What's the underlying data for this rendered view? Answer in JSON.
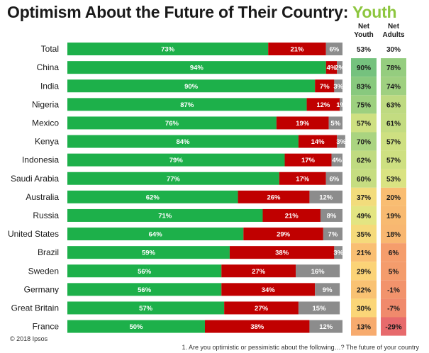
{
  "title": {
    "main": "Optimism About the Future of Their Country:",
    "accent": "Youth"
  },
  "headers": {
    "net_youth": [
      "Net",
      "Youth"
    ],
    "net_adults": [
      "Net",
      "Adults"
    ]
  },
  "copyright": "© 2018 Ipsos",
  "footnote": "1. Are you optimistic or pessimistic about the following…? The future of your country",
  "colors": {
    "optimistic": "#1db04a",
    "pessimistic": "#c00000",
    "neutral": "#8c8c8c",
    "accent": "#8dc63f"
  },
  "chart_data": {
    "type": "bar",
    "orientation": "horizontal",
    "stacked": true,
    "categories": [
      "Total",
      "China",
      "India",
      "Nigeria",
      "Mexico",
      "Kenya",
      "Indonesia",
      "Saudi Arabia",
      "Australia",
      "Russia",
      "United States",
      "Brazil",
      "Sweden",
      "Germany",
      "Great Britain",
      "France"
    ],
    "series": [
      {
        "values": [
          73,
          94,
          90,
          87,
          76,
          84,
          79,
          77,
          62,
          71,
          64,
          59,
          56,
          56,
          57,
          50
        ],
        "color": "#1db04a"
      },
      {
        "values": [
          21,
          4,
          7,
          12,
          19,
          14,
          17,
          17,
          26,
          21,
          29,
          38,
          27,
          34,
          27,
          38
        ],
        "color": "#c00000"
      },
      {
        "values": [
          6,
          2,
          3,
          1,
          5,
          3,
          4,
          6,
          12,
          8,
          7,
          3,
          16,
          9,
          15,
          12
        ],
        "color": "#8c8c8c"
      }
    ],
    "xlim": [
      0,
      100
    ],
    "net_youth": [
      53,
      90,
      83,
      75,
      57,
      70,
      62,
      60,
      37,
      49,
      35,
      21,
      29,
      22,
      30,
      13
    ],
    "net_adults": [
      30,
      78,
      74,
      63,
      61,
      57,
      57,
      53,
      20,
      19,
      18,
      6,
      5,
      -1,
      -7,
      -29
    ]
  }
}
